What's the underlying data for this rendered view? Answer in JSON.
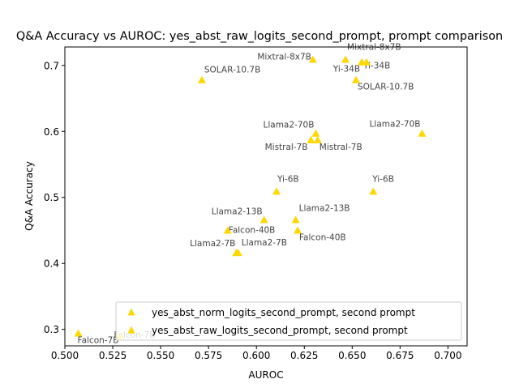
{
  "chart_data": {
    "type": "scatter",
    "title": "Q&A Accuracy vs AUROC: yes_abst_raw_logits_second_prompt, prompt comparison",
    "xlabel": "AUROC",
    "ylabel": "Q&A Accuracy",
    "xlim": [
      0.5,
      0.71
    ],
    "ylim": [
      0.275,
      0.728
    ],
    "xticks": [
      "0.500",
      "0.525",
      "0.550",
      "0.575",
      "0.600",
      "0.625",
      "0.650",
      "0.675",
      "0.700"
    ],
    "yticks": [
      "0.3",
      "0.4",
      "0.5",
      "0.6",
      "0.7"
    ],
    "grid": false,
    "legend_position": "lower-right",
    "marker": "triangle",
    "series": [
      {
        "name": "yes_abst_norm_logits_second_prompt, second prompt",
        "color": "#FFD700",
        "points": [
          {
            "label": "Mixtral-8x7B",
            "x": 0.6465,
            "y": 0.709
          },
          {
            "label": "Yi-34B",
            "x": 0.655,
            "y": 0.705
          },
          {
            "label": "SOLAR-10.7B",
            "x": 0.652,
            "y": 0.678
          },
          {
            "label": "Llama2-70B",
            "x": 0.631,
            "y": 0.597
          },
          {
            "label": "Mistral-7B",
            "x": 0.632,
            "y": 0.587
          },
          {
            "label": "Yi-6B",
            "x": 0.661,
            "y": 0.509
          },
          {
            "label": "Llama2-13B",
            "x": 0.6205,
            "y": 0.466
          },
          {
            "label": "Falcon-40B",
            "x": 0.6215,
            "y": 0.45
          },
          {
            "label": "Llama2-7B",
            "x": 0.5905,
            "y": 0.416
          },
          {
            "label": "Falcon-7B",
            "x": 0.507,
            "y": 0.294
          }
        ]
      },
      {
        "name": "yes_abst_raw_logits_second_prompt, second prompt",
        "color": "#FFD700",
        "points": [
          {
            "label": "Mixtral-8x7B",
            "x": 0.6295,
            "y": 0.709
          },
          {
            "label": "Yi-34B",
            "x": 0.6575,
            "y": 0.705
          },
          {
            "label": "SOLAR-10.7B",
            "x": 0.5715,
            "y": 0.678
          },
          {
            "label": "Llama2-70B",
            "x": 0.6865,
            "y": 0.597
          },
          {
            "label": "Mistral-7B",
            "x": 0.6285,
            "y": 0.587
          },
          {
            "label": "Yi-6B",
            "x": 0.6105,
            "y": 0.509
          },
          {
            "label": "Llama2-13B",
            "x": 0.604,
            "y": 0.466
          },
          {
            "label": "Falcon-40B",
            "x": 0.585,
            "y": 0.45
          },
          {
            "label": "Llama2-7B",
            "x": 0.5895,
            "y": 0.416
          },
          {
            "label": "Falcon-7B",
            "x": 0.529,
            "y": 0.29
          }
        ]
      }
    ]
  }
}
